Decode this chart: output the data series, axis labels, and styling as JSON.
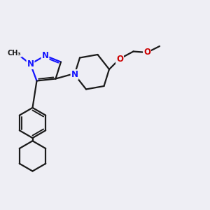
{
  "bg_color": "#eeeef4",
  "bond_color": "#1a1a1a",
  "N_color": "#1414ff",
  "O_color": "#cc0000",
  "lw": 1.6,
  "fs": 8.5,
  "xlim": [
    0,
    10
  ],
  "ylim": [
    0,
    10
  ]
}
